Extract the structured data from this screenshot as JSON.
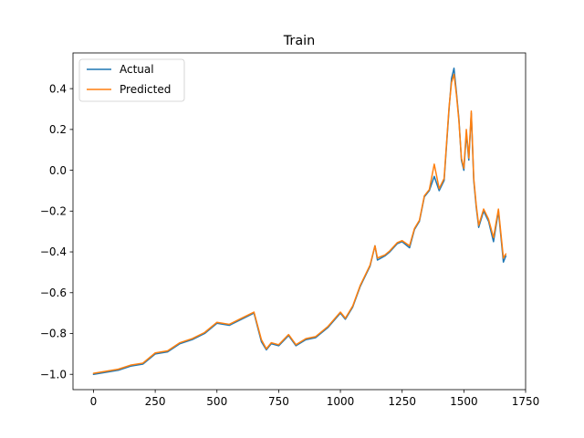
{
  "chart_data": {
    "type": "line",
    "title": "Train",
    "xlabel": "",
    "ylabel": "",
    "xlim": [
      -83,
      1750
    ],
    "ylim": [
      -1.075,
      0.575
    ],
    "xticks": [
      0,
      250,
      500,
      750,
      1000,
      1250,
      1500,
      1750
    ],
    "xtick_labels": [
      "0",
      "250",
      "500",
      "750",
      "1000",
      "1250",
      "1500",
      "1750"
    ],
    "yticks": [
      -1.0,
      -0.8,
      -0.6,
      -0.4,
      -0.2,
      0.0,
      0.2,
      0.4
    ],
    "ytick_labels": [
      "−1.0",
      "−0.8",
      "−0.6",
      "−0.4",
      "−0.2",
      "0.0",
      "0.2",
      "0.4"
    ],
    "grid": false,
    "legend_position": "upper-left",
    "series": [
      {
        "name": "Actual",
        "color": "#1f77b4",
        "x": [
          0,
          50,
          100,
          150,
          200,
          250,
          300,
          350,
          400,
          450,
          500,
          550,
          600,
          650,
          680,
          700,
          720,
          750,
          790,
          820,
          860,
          900,
          950,
          1000,
          1020,
          1050,
          1080,
          1120,
          1140,
          1150,
          1180,
          1200,
          1230,
          1250,
          1280,
          1300,
          1320,
          1340,
          1360,
          1380,
          1400,
          1420,
          1440,
          1450,
          1460,
          1470,
          1480,
          1490,
          1500,
          1510,
          1520,
          1530,
          1540,
          1550,
          1560,
          1580,
          1600,
          1620,
          1640,
          1660,
          1670
        ],
        "y": [
          -1.0,
          -0.99,
          -0.98,
          -0.96,
          -0.95,
          -0.9,
          -0.89,
          -0.85,
          -0.83,
          -0.8,
          -0.75,
          -0.76,
          -0.73,
          -0.7,
          -0.84,
          -0.88,
          -0.85,
          -0.86,
          -0.81,
          -0.86,
          -0.83,
          -0.82,
          -0.77,
          -0.7,
          -0.73,
          -0.67,
          -0.57,
          -0.47,
          -0.37,
          -0.44,
          -0.42,
          -0.4,
          -0.36,
          -0.35,
          -0.38,
          -0.29,
          -0.25,
          -0.13,
          -0.1,
          -0.03,
          -0.1,
          -0.05,
          0.3,
          0.45,
          0.5,
          0.38,
          0.25,
          0.05,
          0.0,
          0.18,
          0.05,
          0.28,
          -0.05,
          -0.18,
          -0.28,
          -0.2,
          -0.25,
          -0.35,
          -0.2,
          -0.45,
          -0.42
        ]
      },
      {
        "name": "Predicted",
        "color": "#ff7f0e",
        "x": [
          0,
          50,
          100,
          150,
          200,
          250,
          300,
          350,
          400,
          450,
          500,
          550,
          600,
          650,
          680,
          700,
          720,
          750,
          790,
          820,
          860,
          900,
          950,
          1000,
          1020,
          1050,
          1080,
          1120,
          1140,
          1150,
          1180,
          1200,
          1230,
          1250,
          1280,
          1300,
          1320,
          1340,
          1360,
          1380,
          1400,
          1420,
          1440,
          1450,
          1460,
          1470,
          1480,
          1490,
          1500,
          1510,
          1520,
          1530,
          1540,
          1550,
          1560,
          1580,
          1600,
          1620,
          1640,
          1660,
          1670
        ],
        "y": [
          -0.995,
          -0.985,
          -0.975,
          -0.955,
          -0.945,
          -0.895,
          -0.885,
          -0.845,
          -0.825,
          -0.795,
          -0.745,
          -0.755,
          -0.725,
          -0.695,
          -0.83,
          -0.875,
          -0.845,
          -0.855,
          -0.805,
          -0.855,
          -0.825,
          -0.815,
          -0.765,
          -0.695,
          -0.725,
          -0.665,
          -0.565,
          -0.465,
          -0.37,
          -0.43,
          -0.415,
          -0.395,
          -0.355,
          -0.345,
          -0.37,
          -0.285,
          -0.245,
          -0.125,
          -0.095,
          0.03,
          -0.09,
          -0.04,
          0.31,
          0.43,
          0.47,
          0.37,
          0.24,
          0.06,
          0.01,
          0.2,
          0.06,
          0.29,
          -0.04,
          -0.17,
          -0.27,
          -0.19,
          -0.24,
          -0.33,
          -0.19,
          -0.43,
          -0.41
        ]
      }
    ]
  }
}
